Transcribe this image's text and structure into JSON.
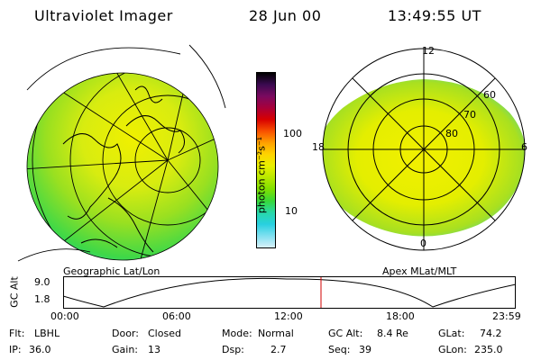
{
  "header": {
    "instrument": "Ultraviolet Imager",
    "date": "28 Jun 00",
    "time": "13:49:55 UT"
  },
  "left_panel": {
    "caption": "Geographic Lat/Lon"
  },
  "right_panel": {
    "caption": "Apex  MLat/MLT",
    "mlt_labels": {
      "top": "12",
      "left": "18",
      "right": "6",
      "bottom": "0"
    },
    "lat_labels": [
      "60",
      "70",
      "80"
    ]
  },
  "colorbar": {
    "unit_label": "photon cm⁻²s⁻¹",
    "tick_labels": [
      "100",
      "10"
    ],
    "colors": [
      "#000000",
      "#3a0a50",
      "#7a0a60",
      "#a8003a",
      "#d80000",
      "#f85000",
      "#ffa000",
      "#ffd400",
      "#e8f000",
      "#b8e800",
      "#7fe000",
      "#38d838",
      "#28d8a8",
      "#28d0e0",
      "#80e0f0",
      "#d8f0f8"
    ]
  },
  "altitude_plot": {
    "ylabel": "GC Alt",
    "yticks": [
      "9.0",
      "1.8"
    ],
    "xticks": [
      "00:00",
      "06:00",
      "12:00",
      "18:00",
      "23:59"
    ],
    "current_marker_time": "13:49"
  },
  "footer": {
    "flt_label": "Flt:",
    "flt_value": "LBHL",
    "ip_label": "IP:",
    "ip_value": "36.0",
    "door_label": "Door:",
    "door_value": "Closed",
    "gain_label": "Gain:",
    "gain_value": "13",
    "mode_label": "Mode:",
    "mode_value": "Normal",
    "dsp_label": "Dsp:",
    "dsp_value": "2.7",
    "gcalt_label": "GC Alt:",
    "gcalt_value": "8.4 Re",
    "seq_label": "Seq:",
    "seq_value": "39",
    "glat_label": "GLat:",
    "glat_value": "74.2",
    "glon_label": "GLon:",
    "glon_value": "235.0"
  }
}
